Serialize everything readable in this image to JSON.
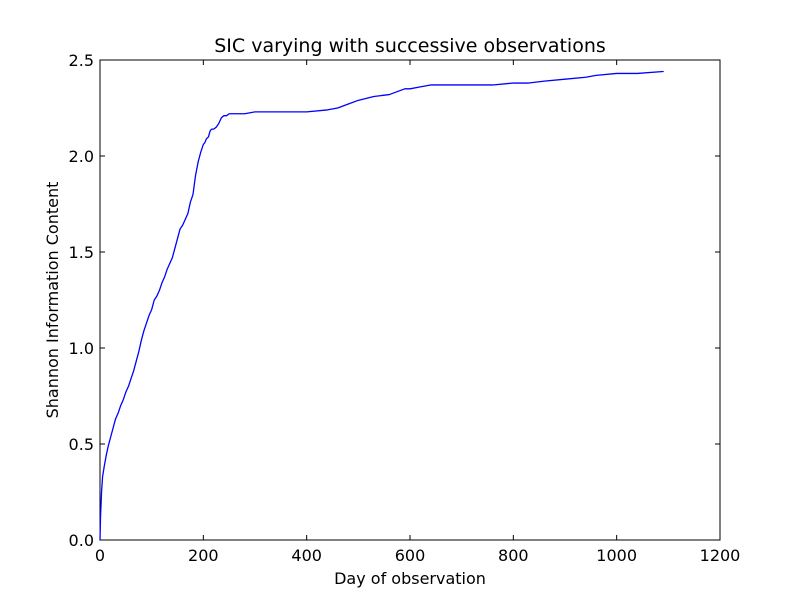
{
  "chart_data": {
    "type": "line",
    "title": "SIC varying with successive observations",
    "xlabel": "Day of observation",
    "ylabel": "Shannon Information Content",
    "xlim": [
      0,
      1200
    ],
    "ylim": [
      0.0,
      2.5
    ],
    "xticks": [
      {
        "value": 0,
        "label": "0"
      },
      {
        "value": 200,
        "label": "200"
      },
      {
        "value": 400,
        "label": "400"
      },
      {
        "value": 600,
        "label": "600"
      },
      {
        "value": 800,
        "label": "800"
      },
      {
        "value": 1000,
        "label": "1000"
      },
      {
        "value": 1200,
        "label": "1200"
      }
    ],
    "yticks": [
      {
        "value": 0.0,
        "label": "0.0"
      },
      {
        "value": 0.5,
        "label": "0.5"
      },
      {
        "value": 1.0,
        "label": "1.0"
      },
      {
        "value": 1.5,
        "label": "1.5"
      },
      {
        "value": 2.0,
        "label": "2.0"
      },
      {
        "value": 2.5,
        "label": "2.5"
      }
    ],
    "grid": false,
    "legend": "none",
    "series": [
      {
        "color": "#0000ff",
        "x": [
          0,
          1,
          3,
          5,
          8,
          12,
          16,
          20,
          25,
          30,
          35,
          40,
          45,
          50,
          55,
          60,
          65,
          70,
          75,
          80,
          85,
          90,
          95,
          100,
          105,
          110,
          115,
          120,
          125,
          130,
          135,
          140,
          145,
          150,
          155,
          160,
          165,
          170,
          175,
          180,
          185,
          190,
          195,
          200,
          203,
          206,
          210,
          213,
          216,
          220,
          225,
          230,
          235,
          240,
          245,
          250,
          255,
          260,
          265,
          270,
          280,
          300,
          350,
          400,
          440,
          460,
          480,
          500,
          530,
          560,
          590,
          600,
          620,
          640,
          700,
          760,
          800,
          830,
          860,
          900,
          940,
          960,
          1000,
          1040,
          1090
        ],
        "y": [
          0.0,
          0.12,
          0.25,
          0.33,
          0.38,
          0.44,
          0.49,
          0.53,
          0.58,
          0.63,
          0.66,
          0.7,
          0.73,
          0.77,
          0.8,
          0.84,
          0.88,
          0.93,
          0.98,
          1.04,
          1.09,
          1.13,
          1.17,
          1.2,
          1.25,
          1.27,
          1.3,
          1.34,
          1.37,
          1.41,
          1.44,
          1.47,
          1.52,
          1.57,
          1.62,
          1.64,
          1.67,
          1.7,
          1.76,
          1.8,
          1.9,
          1.97,
          2.02,
          2.06,
          2.07,
          2.09,
          2.1,
          2.13,
          2.14,
          2.14,
          2.15,
          2.17,
          2.2,
          2.21,
          2.21,
          2.22,
          2.22,
          2.22,
          2.22,
          2.22,
          2.22,
          2.23,
          2.23,
          2.23,
          2.24,
          2.25,
          2.27,
          2.29,
          2.31,
          2.32,
          2.35,
          2.35,
          2.36,
          2.37,
          2.37,
          2.37,
          2.38,
          2.38,
          2.39,
          2.4,
          2.41,
          2.42,
          2.43,
          2.43,
          2.44
        ]
      }
    ]
  }
}
